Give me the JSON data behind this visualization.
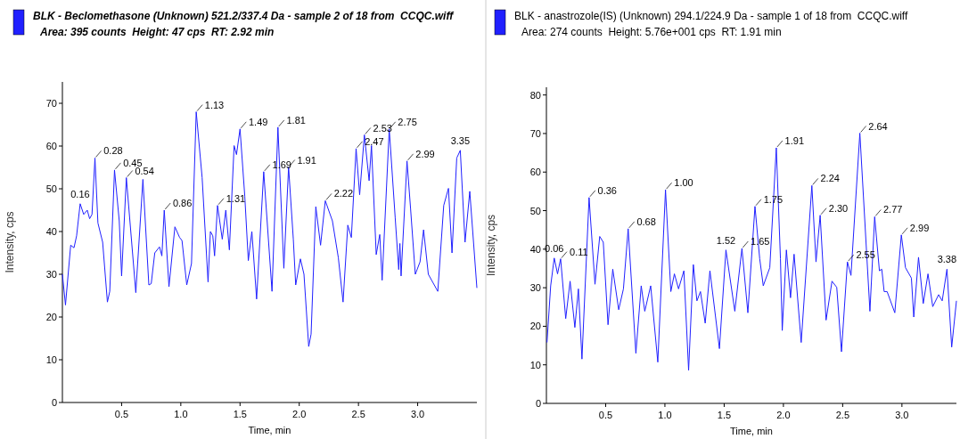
{
  "chart_data": [
    {
      "type": "line",
      "title": "BLK - Beclomethasone (Unknown) 521.2/337.4 Da - sample 2 of 18 from  CCQC.wiff",
      "subtitle": "Area: 395 counts  Height: 47 cps  RT: 2.92 min",
      "xlabel": "Time, min",
      "ylabel": "Intensity, cps",
      "xlim": [
        0,
        3.5
      ],
      "ylim": [
        0,
        75
      ],
      "xticks": [
        0.5,
        {
          "value": 1,
          "label": "1.0"
        },
        1.5,
        {
          "value": 2,
          "label": "2.0"
        },
        2.5,
        {
          "value": 3,
          "label": "3.0"
        }
      ],
      "yticks": [
        0,
        10,
        20,
        30,
        40,
        50,
        60,
        70
      ],
      "grid": false,
      "marker": "none",
      "line_style": "solid",
      "x": [
        0,
        0.026,
        0.07,
        0.098,
        0.12,
        0.15,
        0.18,
        0.21,
        0.23,
        0.25,
        0.275,
        0.3,
        0.34,
        0.38,
        0.4,
        0.44,
        0.48,
        0.5,
        0.54,
        0.57,
        0.62,
        0.68,
        0.73,
        0.75,
        0.78,
        0.82,
        0.84,
        0.86,
        0.9,
        0.95,
        0.99,
        1.01,
        1.05,
        1.09,
        1.13,
        1.18,
        1.23,
        1.25,
        1.27,
        1.285,
        1.31,
        1.35,
        1.38,
        1.41,
        1.45,
        1.47,
        1.5,
        1.54,
        1.57,
        1.6,
        1.64,
        1.7,
        1.77,
        1.82,
        1.87,
        1.91,
        1.95,
        1.97,
        2.01,
        2.04,
        2.08,
        2.1,
        2.14,
        2.18,
        2.22,
        2.28,
        2.33,
        2.37,
        2.41,
        2.44,
        2.48,
        2.51,
        2.55,
        2.59,
        2.61,
        2.65,
        2.68,
        2.7,
        2.76,
        2.81,
        2.84,
        2.85,
        2.86,
        2.91,
        2.94,
        2.98,
        3.02,
        3.05,
        3.09,
        3.17,
        3.22,
        3.26,
        3.29,
        3.33,
        3.36,
        3.4,
        3.44,
        3.5
      ],
      "series": [
        {
          "color": "#2020ff",
          "values": [
            30,
            22.8,
            36.8,
            36.2,
            39,
            46.5,
            44,
            45,
            43,
            44,
            57.2,
            42,
            37.5,
            23.5,
            26,
            54.4,
            42.5,
            29.6,
            52.6,
            42.5,
            25.7,
            52.2,
            27.5,
            27.8,
            35,
            36.4,
            34.3,
            45,
            27.1,
            41.1,
            38.6,
            37.9,
            27.5,
            32.5,
            68,
            52.6,
            28.2,
            40,
            39,
            34.3,
            46.1,
            38.2,
            45,
            35.7,
            60.1,
            58,
            64,
            48.3,
            33.2,
            40,
            24.2,
            54,
            26,
            64.4,
            31.4,
            55.1,
            38.2,
            27.5,
            33.6,
            30,
            13.1,
            16,
            45.8,
            36.8,
            47.2,
            42.5,
            33.9,
            23.5,
            41.5,
            38.6,
            59.4,
            48.6,
            62.6,
            51.9,
            60.1,
            34.6,
            39.3,
            28.6,
            64,
            43.3,
            31.1,
            37.2,
            29.6,
            56.5,
            45.4,
            30,
            32.9,
            40.4,
            30,
            26,
            46.1,
            50.1,
            35,
            57.2,
            59,
            37.5,
            49.4,
            26.8
          ]
        }
      ],
      "annotations": [
        {
          "text": "0.16",
          "x": 0.15,
          "y": 46.5
        },
        {
          "text": "0.28",
          "x": 0.275,
          "y": 57.2
        },
        {
          "text": "0.45",
          "x": 0.44,
          "y": 54.4
        },
        {
          "text": "0.54",
          "x": 0.54,
          "y": 52.6
        },
        {
          "text": "0.86",
          "x": 0.86,
          "y": 45
        },
        {
          "text": "1.13",
          "x": 1.13,
          "y": 68
        },
        {
          "text": "1.31",
          "x": 1.31,
          "y": 46.1
        },
        {
          "text": "1.49",
          "x": 1.5,
          "y": 64
        },
        {
          "text": "1.69",
          "x": 1.7,
          "y": 54
        },
        {
          "text": "1.81",
          "x": 1.82,
          "y": 64.4
        },
        {
          "text": "1.91",
          "x": 1.91,
          "y": 55.1
        },
        {
          "text": "2.22",
          "x": 2.22,
          "y": 47.2
        },
        {
          "text": "2.47",
          "x": 2.48,
          "y": 59.4
        },
        {
          "text": "2.53",
          "x": 2.55,
          "y": 62.6
        },
        {
          "text": "2.75",
          "x": 2.76,
          "y": 64
        },
        {
          "text": "2.99",
          "x": 2.91,
          "y": 56.5
        },
        {
          "text": "3.35",
          "x": 3.36,
          "y": 59
        }
      ]
    },
    {
      "type": "line",
      "title": "BLK - anastrozole(IS) (Unknown) 294.1/224.9 Da - sample 1 of 18 from  CCQC.wiff",
      "subtitle": "Area: 274 counts  Height: 5.76e+001 cps  RT: 1.91 min",
      "xlabel": "Time, min",
      "ylabel": "Intensity, cps",
      "xlim": [
        0,
        3.46
      ],
      "ylim": [
        0,
        82
      ],
      "xticks": [
        0.5,
        {
          "value": 1,
          "label": "1.0"
        },
        1.5,
        {
          "value": 2,
          "label": "2.0"
        },
        2.5,
        {
          "value": 3,
          "label": "3.0"
        }
      ],
      "yticks": [
        0,
        10,
        20,
        30,
        40,
        50,
        60,
        70,
        80
      ],
      "grid": false,
      "marker": "none",
      "line_style": "solid",
      "x": [
        0.005,
        0.036,
        0.066,
        0.094,
        0.12,
        0.163,
        0.2,
        0.24,
        0.27,
        0.3,
        0.36,
        0.41,
        0.45,
        0.48,
        0.52,
        0.56,
        0.61,
        0.65,
        0.69,
        0.755,
        0.8,
        0.83,
        0.88,
        0.94,
        1.005,
        1.05,
        1.08,
        1.115,
        1.16,
        1.2,
        1.24,
        1.27,
        1.3,
        1.34,
        1.38,
        1.46,
        1.515,
        1.59,
        1.65,
        1.7,
        1.76,
        1.8,
        1.83,
        1.885,
        1.94,
        1.975,
        1.99,
        2.025,
        2.06,
        2.09,
        2.15,
        2.24,
        2.275,
        2.31,
        2.36,
        2.41,
        2.45,
        2.49,
        2.54,
        2.57,
        2.645,
        2.73,
        2.77,
        2.81,
        2.83,
        2.85,
        2.875,
        2.94,
        2.995,
        3.03,
        3.08,
        3.1,
        3.14,
        3.18,
        3.22,
        3.26,
        3.31,
        3.34,
        3.38,
        3.42,
        3.46
      ],
      "series": [
        {
          "color": "#2020ff",
          "values": [
            15.8,
            30.5,
            37.7,
            33.6,
            37.5,
            22,
            31.7,
            19.7,
            29.7,
            11.5,
            53.4,
            30.9,
            43.3,
            41.8,
            20.4,
            34.8,
            24.3,
            29.7,
            45.3,
            13,
            30.5,
            23.9,
            30.5,
            10.7,
            55.4,
            29,
            33.6,
            29.7,
            34.4,
            8.6,
            36,
            26.6,
            29,
            20.8,
            34.4,
            14.2,
            39.8,
            23.9,
            40.2,
            23.5,
            51.1,
            37.5,
            30.5,
            35.2,
            66.3,
            37.5,
            18.9,
            39.8,
            27.4,
            38.7,
            15.8,
            56.5,
            36.7,
            48.8,
            21.6,
            31.7,
            30.1,
            13.4,
            36.7,
            33.2,
            70.1,
            23.9,
            48.4,
            34.4,
            34.8,
            29,
            29,
            23.5,
            43.7,
            35.2,
            32.5,
            22.4,
            37.9,
            25.9,
            33.6,
            25.1,
            28.2,
            26.6,
            34.8,
            14.6,
            26.6
          ]
        }
      ],
      "annotations": [
        {
          "text": "0.06",
          "x": 0.066,
          "y": 37.7
        },
        {
          "text": "0.11",
          "x": 0.12,
          "y": 37.5
        },
        {
          "text": "0.36",
          "x": 0.36,
          "y": 53.4
        },
        {
          "text": "0.68",
          "x": 0.69,
          "y": 45.3
        },
        {
          "text": "1.00",
          "x": 1.005,
          "y": 55.4
        },
        {
          "text": "1.52",
          "x": 1.515,
          "y": 39.8
        },
        {
          "text": "1.65",
          "x": 1.65,
          "y": 40.2
        },
        {
          "text": "1.75",
          "x": 1.76,
          "y": 51.1
        },
        {
          "text": "1.91",
          "x": 1.94,
          "y": 66.3
        },
        {
          "text": "2.24",
          "x": 2.24,
          "y": 56.5
        },
        {
          "text": "2.30",
          "x": 2.31,
          "y": 48.8
        },
        {
          "text": "2.55",
          "x": 2.54,
          "y": 36.7
        },
        {
          "text": "2.64",
          "x": 2.645,
          "y": 70.1
        },
        {
          "text": "2.77",
          "x": 2.77,
          "y": 48.4
        },
        {
          "text": "2.99",
          "x": 2.995,
          "y": 43.7
        },
        {
          "text": "3.38",
          "x": 3.38,
          "y": 34.8
        }
      ]
    }
  ]
}
